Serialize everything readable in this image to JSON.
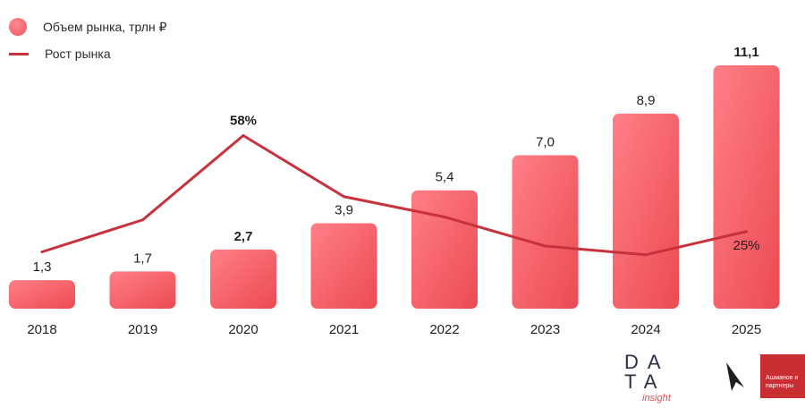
{
  "chart_data": {
    "type": "bar",
    "categories": [
      "2018",
      "2019",
      "2020",
      "2021",
      "2022",
      "2023",
      "2024",
      "2025"
    ],
    "series": [
      {
        "name": "Объем рынка, трлн ₽",
        "type": "bar",
        "values": [
          1.3,
          1.7,
          2.7,
          3.9,
          5.4,
          7.0,
          8.9,
          11.1
        ],
        "labels": [
          "1,3",
          "1,7",
          "2,7",
          "3,9",
          "5,4",
          "7,0",
          "8,9",
          "11,1"
        ],
        "bold_labels": [
          "2020",
          "2025"
        ],
        "color": "#f2545b"
      },
      {
        "name": "Рост рынка",
        "type": "line",
        "values": [
          18,
          29,
          58,
          37,
          30,
          20,
          17,
          25
        ],
        "visible_labels": {
          "2020": "58%",
          "2025": "25%"
        },
        "color": "#c8323c"
      }
    ],
    "legend_position": "top-left",
    "grid": false
  },
  "legend": {
    "bar_label": "Объем рынка, трлн ₽",
    "line_label": "Рост рынка"
  },
  "logos": {
    "data_insight_line1": "DATA",
    "data_insight_line2": "insight",
    "ashmanov": "Ашманов и партнеры"
  }
}
